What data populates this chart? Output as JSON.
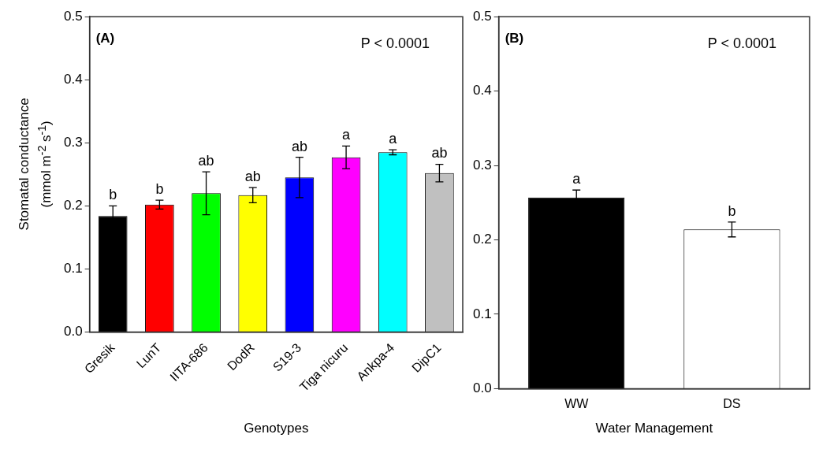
{
  "chart_data": [
    {
      "type": "bar",
      "ylabel": "Stomatal conductance (mmol m$^{-2}$ s$^{-1}$)",
      "xlabel": "Genotypes",
      "categories": [
        "Gresik",
        "LunT",
        "IITA-686",
        "DodR",
        "S19-3",
        "Tiga nicuru",
        "Ankpa-4",
        "DipC1"
      ],
      "values": [
        0.184,
        0.202,
        0.22,
        0.217,
        0.245,
        0.277,
        0.285,
        0.252
      ],
      "colors": [
        "#000000",
        "#ff0000",
        "#00ff00",
        "#ffff00",
        "#0000ff",
        "#ff00ff",
        "#00ffff",
        "#c0c0c0"
      ],
      "errors": [
        0.016,
        0.007,
        0.034,
        0.012,
        0.032,
        0.018,
        0.004,
        0.014
      ],
      "ylim": [
        0,
        0.5
      ],
      "yticks": [
        {
          "value": 0,
          "label": "0.0"
        },
        0.1,
        0.2,
        0.3,
        0.4,
        0.5
      ],
      "grid": false,
      "legend": false,
      "annotations": [
        "(A)",
        "P < 0.0001",
        {
          "text": "b",
          "x": "Gresik",
          "y": 0.2
        },
        {
          "text": "b",
          "x": "LunT",
          "y": 0.209
        },
        {
          "text": "ab",
          "x": "IITA-686",
          "y": 0.254
        },
        {
          "text": "ab",
          "x": "DodR",
          "y": 0.229
        },
        {
          "text": "ab",
          "x": "S19-3",
          "y": 0.277
        },
        {
          "text": "a",
          "x": "Tiga nicuru",
          "y": 0.295
        },
        {
          "text": "a",
          "x": "Ankpa-4",
          "y": 0.289
        },
        {
          "text": "ab",
          "x": "DipC1",
          "y": 0.266
        }
      ]
    },
    {
      "type": "bar",
      "xlabel": "Water Management",
      "categories": [
        "WW",
        "DS"
      ],
      "values": [
        0.257,
        0.214
      ],
      "colors": [
        "#000000",
        "#ffffff"
      ],
      "errors": [
        0.01,
        0.01
      ],
      "ylim": [
        0,
        0.5
      ],
      "yticks": [
        {
          "value": 0,
          "label": "0.0"
        },
        0.1,
        0.2,
        0.3,
        0.4,
        0.5
      ],
      "grid": false,
      "legend": false,
      "annotations": [
        "(B)",
        "P < 0.0001",
        {
          "text": "a",
          "x": "WW",
          "y": 0.267
        },
        {
          "text": "b",
          "x": "DS",
          "y": 0.224
        }
      ]
    }
  ]
}
